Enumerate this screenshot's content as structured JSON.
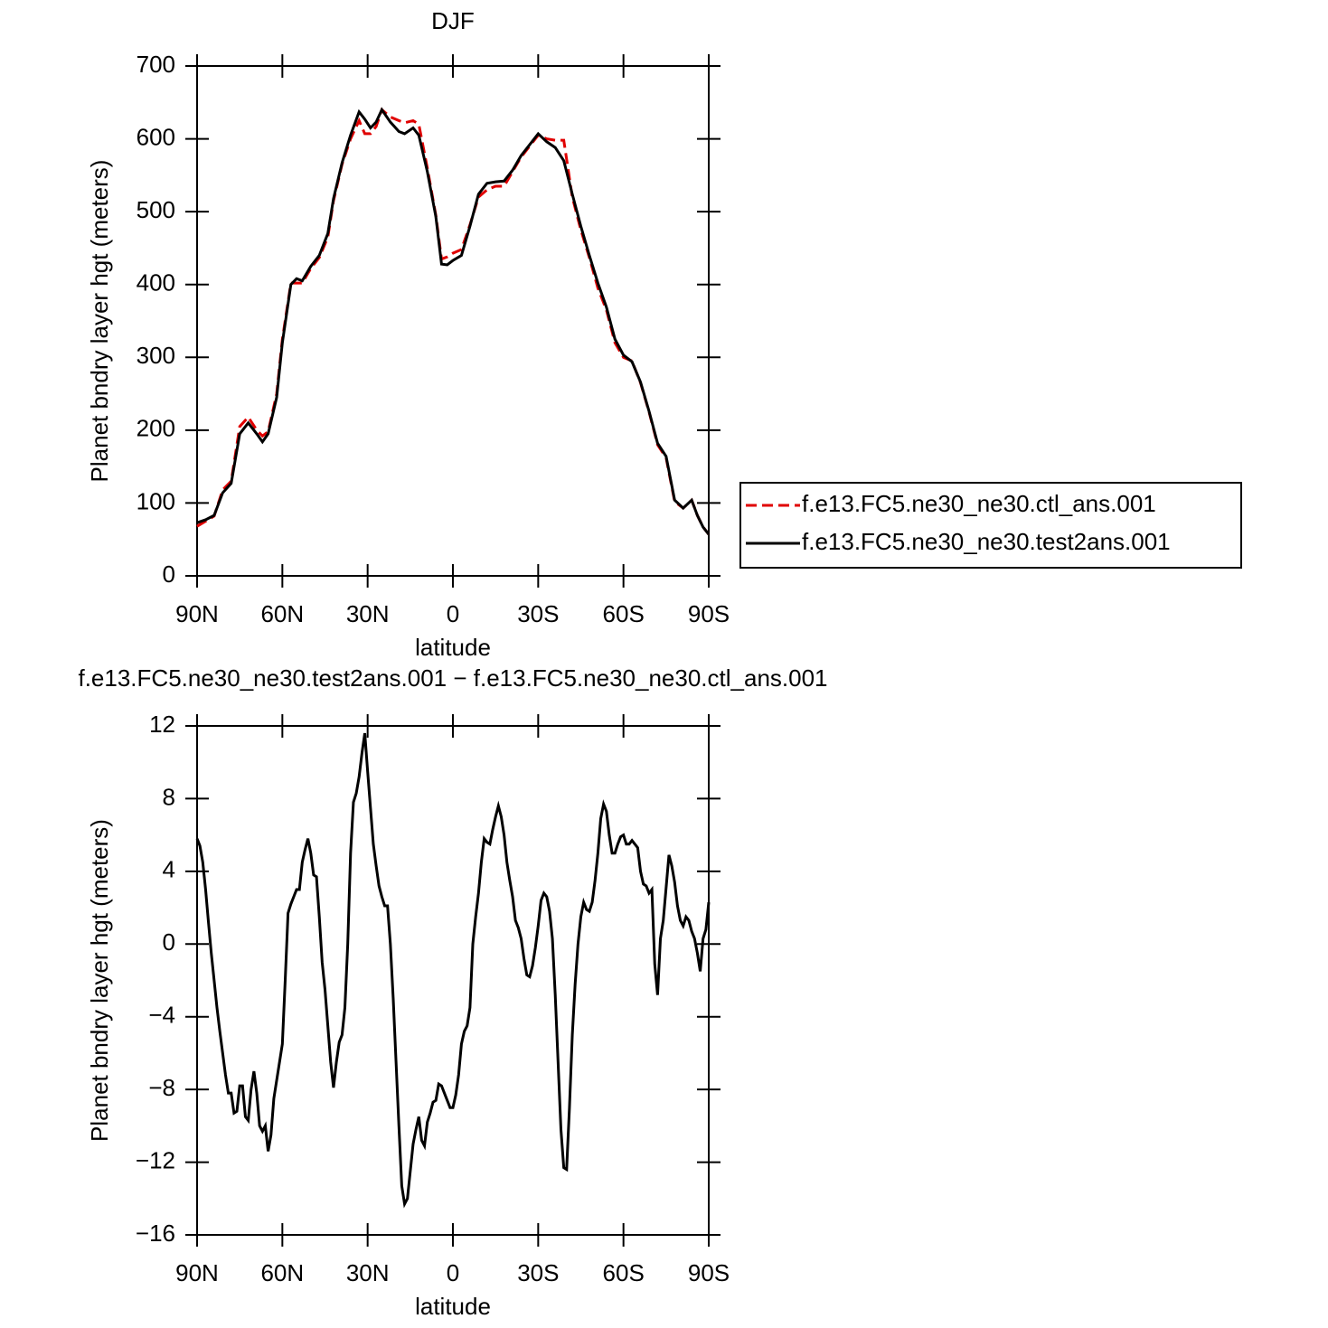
{
  "chart_data": [
    {
      "type": "line",
      "title": "DJF",
      "xlabel": "latitude",
      "ylabel": "Planet bndry layer hgt (meters)",
      "x": [
        90,
        87,
        84,
        81,
        78,
        75,
        72,
        69,
        67,
        65,
        62,
        60,
        57,
        55,
        53,
        50,
        47,
        44,
        42,
        39,
        36,
        33,
        31,
        29,
        27,
        25,
        22,
        19,
        17,
        14,
        12,
        9,
        6,
        4,
        2,
        0,
        -3,
        -6,
        -9,
        -12,
        -15,
        -18,
        -21,
        -24,
        -27,
        -30,
        -33,
        -36,
        -39,
        -42,
        -45,
        -48,
        -51,
        -54,
        -57,
        -60,
        -63,
        -66,
        -69,
        -72,
        -75,
        -78,
        -81,
        -84,
        -86,
        -88,
        -90
      ],
      "series": [
        {
          "name": "f.e13.FC5.ne30_ne30.ctl_ans.001",
          "color": "#e00000",
          "linestyle": "dashed",
          "values": [
            68,
            75,
            82,
            118,
            130,
            205,
            218,
            200,
            192,
            198,
            250,
            325,
            402,
            402,
            402,
            422,
            437,
            465,
            515,
            565,
            600,
            625,
            607,
            607,
            617,
            640,
            630,
            625,
            622,
            625,
            620,
            560,
            495,
            435,
            438,
            443,
            448,
            482,
            520,
            530,
            535,
            535,
            555,
            575,
            590,
            605,
            600,
            598,
            598,
            520,
            475,
            437,
            395,
            365,
            320,
            300,
            295,
            265,
            225,
            180,
            162,
            102,
            93,
            104,
            83,
            67,
            57
          ]
        },
        {
          "name": "f.e13.FC5.ne30_ne30.test2ans.001",
          "color": "#000000",
          "linestyle": "solid",
          "values": [
            73,
            77,
            83,
            114,
            127,
            195,
            210,
            195,
            184,
            195,
            245,
            320,
            400,
            408,
            405,
            425,
            440,
            470,
            518,
            567,
            605,
            637,
            627,
            615,
            623,
            640,
            623,
            610,
            607,
            615,
            605,
            555,
            493,
            428,
            427,
            433,
            440,
            480,
            524,
            539,
            541,
            542,
            557,
            577,
            592,
            607,
            596,
            588,
            570,
            524,
            480,
            440,
            402,
            369,
            325,
            303,
            294,
            266,
            226,
            182,
            164,
            104,
            93,
            104,
            83,
            67,
            57
          ]
        }
      ],
      "xlim": [
        90,
        -90
      ],
      "xticks": [
        {
          "value": 90,
          "label": "90N"
        },
        {
          "value": 60,
          "label": "60N"
        },
        {
          "value": 30,
          "label": "30N"
        },
        0,
        {
          "value": -30,
          "label": "30S"
        },
        {
          "value": -60,
          "label": "60S"
        },
        {
          "value": -90,
          "label": "90S"
        }
      ],
      "ylim": [
        0,
        700
      ],
      "yticks": [
        0,
        100,
        200,
        300,
        400,
        500,
        600,
        700
      ],
      "legend": "right"
    },
    {
      "type": "line",
      "title": "f.e13.FC5.ne30_ne30.test2ans.001 − f.e13.FC5.ne30_ne30.ctl_ans.001",
      "xlabel": "latitude",
      "ylabel": "Planet bndry layer hgt (meters)",
      "x": [
        90,
        89,
        88,
        87,
        86,
        85,
        84,
        83,
        82,
        81,
        80,
        79,
        78,
        77,
        76,
        75,
        74,
        73,
        72,
        71,
        70,
        69,
        68,
        67,
        66,
        65,
        64,
        63,
        62,
        61,
        60,
        59,
        58,
        57,
        56,
        55,
        54,
        53,
        52,
        51,
        50,
        49,
        48,
        47,
        46,
        45,
        44,
        43,
        42,
        41,
        40,
        39,
        38,
        37,
        36,
        35,
        34,
        33,
        32,
        31,
        30,
        29,
        28,
        27,
        26,
        25,
        24,
        23,
        22,
        21,
        20,
        19,
        18,
        17,
        16,
        15,
        14,
        13,
        12,
        11,
        10,
        9,
        8,
        7,
        6,
        5,
        4,
        3,
        2,
        1,
        0,
        -1,
        -2,
        -3,
        -4,
        -5,
        -6,
        -7,
        -8,
        -9,
        -10,
        -11,
        -12,
        -13,
        -14,
        -15,
        -16,
        -17,
        -18,
        -19,
        -20,
        -21,
        -22,
        -23,
        -24,
        -25,
        -26,
        -27,
        -28,
        -29,
        -30,
        -31,
        -32,
        -33,
        -34,
        -35,
        -36,
        -37,
        -38,
        -39,
        -40,
        -41,
        -42,
        -43,
        -44,
        -45,
        -46,
        -47,
        -48,
        -49,
        -50,
        -51,
        -52,
        -53,
        -54,
        -55,
        -56,
        -57,
        -58,
        -59,
        -60,
        -61,
        -62,
        -63,
        -64,
        -65,
        -66,
        -67,
        -68,
        -69,
        -70,
        -71,
        -72,
        -73,
        -74,
        -75,
        -76,
        -77,
        -78,
        -79,
        -80,
        -81,
        -82,
        -83,
        -84,
        -85,
        -86,
        -87,
        -88,
        -89,
        -90
      ],
      "series": [
        {
          "color": "#000000",
          "linestyle": "solid",
          "values": [
            5.8,
            5.4,
            4.5,
            3,
            1.2,
            -0.5,
            -2,
            -3.5,
            -4.8,
            -6,
            -7.2,
            -8.2,
            -8.2,
            -9.3,
            -9.2,
            -7.8,
            -7.8,
            -9.5,
            -9.7,
            -8,
            -7,
            -8.2,
            -10,
            -10.3,
            -10,
            -11.4,
            -10.5,
            -8.5,
            -7.5,
            -6.5,
            -5.5,
            -2,
            1.7,
            2.2,
            2.6,
            3,
            3,
            4.5,
            5.2,
            5.8,
            5,
            3.8,
            3.7,
            1.5,
            -1,
            -2.5,
            -4.5,
            -6.5,
            -7.9,
            -6.5,
            -5.4,
            -5,
            -3.5,
            0,
            5,
            7.8,
            8.3,
            9.2,
            10.5,
            11.6,
            9.5,
            7.5,
            5.5,
            4.3,
            3.2,
            2.6,
            2.1,
            2.1,
            0,
            -3,
            -6.5,
            -10,
            -13.3,
            -14.3,
            -14,
            -12.5,
            -11,
            -10.2,
            -9.5,
            -10.8,
            -11.1,
            -9.8,
            -9.3,
            -8.7,
            -8.6,
            -7.7,
            -7.8,
            -8.2,
            -8.6,
            -9,
            -9,
            -8.3,
            -7.2,
            -5.5,
            -4.8,
            -4.5,
            -3.5,
            0,
            1.5,
            2.8,
            4.5,
            5.8,
            5.6,
            5.5,
            6.3,
            7,
            7.6,
            7,
            6,
            4.5,
            3.5,
            2.6,
            1.3,
            0.9,
            0.3,
            -0.8,
            -1.7,
            -1.8,
            -1.2,
            -0.2,
            1,
            2.4,
            2.8,
            2.6,
            1.8,
            0.3,
            -2.8,
            -6.5,
            -10.2,
            -12.3,
            -12.4,
            -9,
            -5,
            -2.2,
            0,
            1.5,
            2.3,
            1.9,
            1.8,
            2.3,
            3.5,
            5,
            6.9,
            7.7,
            7.3,
            6,
            5,
            5,
            5.5,
            5.9,
            6,
            5.5,
            5.5,
            5.7,
            5.5,
            5.3,
            4,
            3.3,
            3.2,
            2.8,
            3,
            -1.1,
            -2.8,
            0.3,
            1.3,
            3.1,
            4.9,
            4.3,
            3.4,
            2.1,
            1.3,
            1,
            1.5,
            1.3,
            0.7,
            0.3,
            -0.5,
            -1.5,
            0.3,
            0.8,
            2.3
          ]
        }
      ],
      "xlim": [
        90,
        -90
      ],
      "xticks": [
        {
          "value": 90,
          "label": "90N"
        },
        {
          "value": 60,
          "label": "60N"
        },
        {
          "value": 30,
          "label": "30N"
        },
        0,
        {
          "value": -30,
          "label": "30S"
        },
        {
          "value": -60,
          "label": "60S"
        },
        {
          "value": -90,
          "label": "90S"
        }
      ],
      "ylim": [
        -16,
        12
      ],
      "yticks": [
        {
          "value": -16,
          "label": "−16"
        },
        {
          "value": -12,
          "label": "−12"
        },
        {
          "value": -8,
          "label": "−8"
        },
        {
          "value": -4,
          "label": "−4"
        },
        0,
        4,
        8,
        12
      ]
    }
  ]
}
